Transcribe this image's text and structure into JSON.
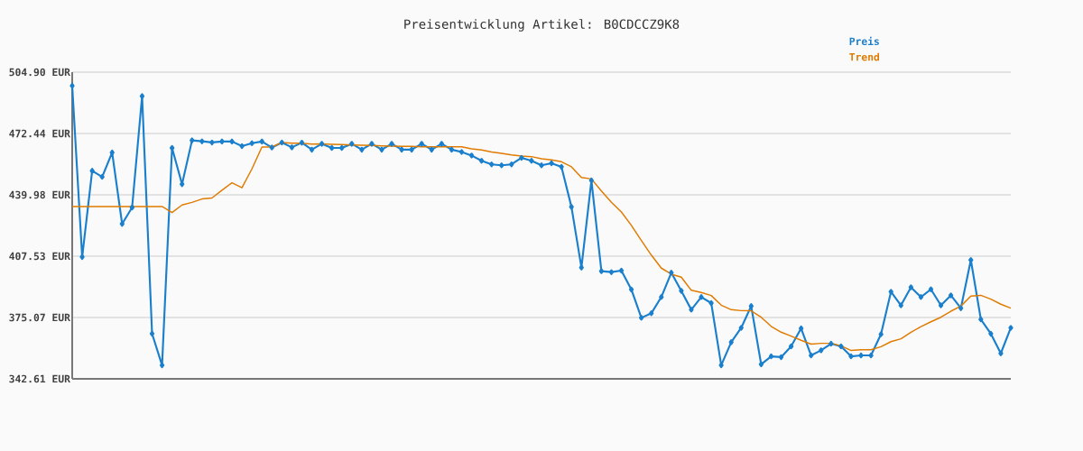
{
  "chart_data": {
    "type": "line",
    "title": "Preisentwicklung Artikel: B0CDCCZ9K8",
    "categories": [
      null,
      null,
      null,
      null,
      null,
      null,
      null,
      null,
      null,
      null,
      null,
      null,
      null,
      null,
      null,
      null,
      null,
      null,
      null,
      null,
      null,
      null,
      null,
      null,
      null,
      null,
      null,
      null,
      null,
      null,
      null,
      null,
      null,
      null,
      null,
      null,
      null,
      null,
      null,
      null,
      null,
      null,
      null,
      null,
      null,
      null,
      null,
      null,
      null,
      null,
      null,
      null,
      null,
      null,
      null,
      null,
      null,
      null,
      null,
      null,
      null,
      null,
      null,
      null,
      null,
      null,
      null,
      null,
      null,
      null,
      null,
      null,
      null,
      null,
      null,
      null,
      null,
      null,
      null,
      null,
      null,
      null,
      null,
      null,
      null,
      null,
      null,
      null,
      null,
      null,
      null,
      null,
      null,
      null,
      null
    ],
    "series": [
      {
        "name": "Preis",
        "color": "#1a7fcc",
        "marker": "diamond",
        "values": [
          497.7,
          407.1,
          452.7,
          449.5,
          462.4,
          424.6,
          433.3,
          492.2,
          366.5,
          349.8,
          464.8,
          445.6,
          468.8,
          468.3,
          467.7,
          468.2,
          468.2,
          465.8,
          467.3,
          468.2,
          465.0,
          467.7,
          465.1,
          467.6,
          463.9,
          467.0,
          464.8,
          464.8,
          467.0,
          463.9,
          467.0,
          463.9,
          467.0,
          463.9,
          463.9,
          467.0,
          463.9,
          467.0,
          463.9,
          462.7,
          460.8,
          458.0,
          456.1,
          455.6,
          456.1,
          459.6,
          458.0,
          455.6,
          456.7,
          454.8,
          433.6,
          401.5,
          447.6,
          399.6,
          399.1,
          399.9,
          389.9,
          374.9,
          377.3,
          385.9,
          398.8,
          389.2,
          379.2,
          385.9,
          382.7,
          349.8,
          362.0,
          369.6,
          381.1,
          350.3,
          354.5,
          354.1,
          359.8,
          369.3,
          355.0,
          357.7,
          361.2,
          359.8,
          354.5,
          355.0,
          355.0,
          366.2,
          388.7,
          381.5,
          391.1,
          385.9,
          390.0,
          381.5,
          386.8,
          380.0,
          405.5,
          374.1,
          366.5,
          356.1,
          369.6
        ]
      },
      {
        "name": "Trend",
        "color": "#e07b00",
        "marker": "none",
        "values": [
          433.8,
          433.8,
          433.8,
          433.8,
          433.8,
          433.8,
          433.8,
          433.8,
          433.8,
          433.8,
          430.6,
          434.6,
          436.0,
          437.8,
          438.3,
          442.4,
          446.4,
          443.7,
          453.7,
          465.3,
          465.3,
          467.7,
          467.3,
          467.3,
          466.8,
          466.9,
          466.7,
          466.6,
          466.4,
          466.2,
          466.1,
          465.9,
          465.8,
          465.6,
          465.6,
          465.4,
          465.4,
          465.4,
          465.4,
          465.4,
          464.3,
          463.7,
          462.7,
          461.9,
          461.1,
          460.5,
          460.2,
          459.1,
          458.5,
          457.5,
          454.8,
          449.2,
          448.4,
          442.0,
          436.0,
          430.9,
          423.8,
          415.8,
          408.1,
          401.2,
          398.0,
          396.4,
          389.5,
          388.3,
          386.7,
          381.6,
          379.2,
          378.7,
          378.6,
          375.2,
          370.4,
          367.3,
          365.2,
          363.0,
          361.0,
          361.4,
          361.4,
          360.1,
          357.6,
          358.0,
          358.0,
          359.6,
          362.3,
          363.8,
          367.3,
          370.2,
          372.8,
          375.2,
          378.4,
          381.1,
          386.4,
          386.8,
          384.8,
          382.1,
          380.0
        ]
      }
    ],
    "ylim": [
      342.61,
      504.9
    ],
    "yticks": [
      {
        "value": 342.61,
        "label": "342.61 EUR"
      },
      {
        "value": 375.07,
        "label": "375.07 EUR"
      },
      {
        "value": 407.53,
        "label": "407.53 EUR"
      },
      {
        "value": 439.98,
        "label": "439.98 EUR"
      },
      {
        "value": 472.44,
        "label": "472.44 EUR"
      },
      {
        "value": 504.9,
        "label": "504.90 EUR"
      }
    ],
    "grid": "y",
    "legend": "top right",
    "line_style": "solid"
  }
}
